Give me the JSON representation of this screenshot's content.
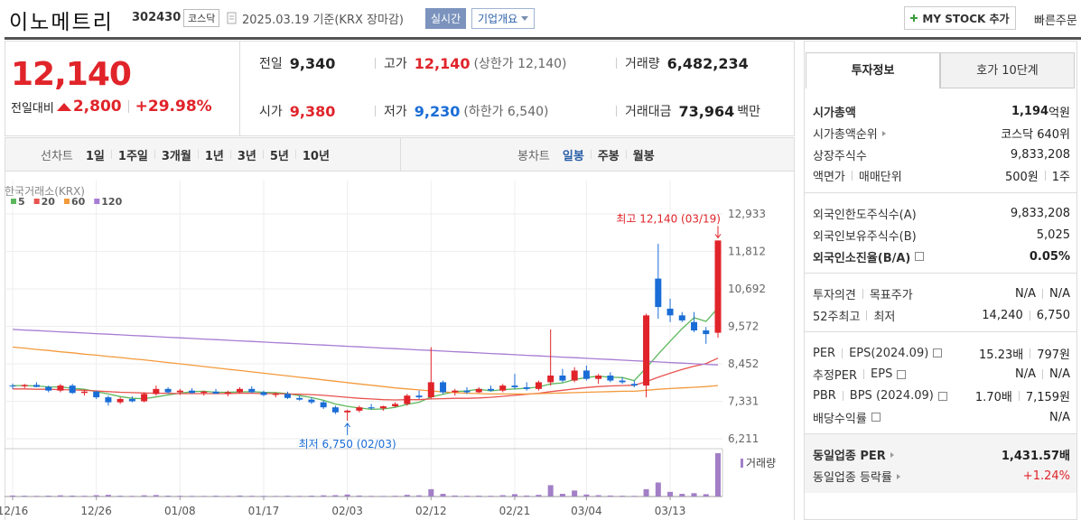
{
  "header": {
    "name": "이노메트리",
    "code": "302430",
    "market": "코스닥",
    "date": "2025.03.19",
    "basis": "기준(KRX 장마감)",
    "realtime_button": "실시간",
    "company_button": "기업개요",
    "mystock_button": "MY STOCK 추가",
    "quick_order": "빠른주문"
  },
  "quote": {
    "price": "12,140",
    "price_color": "#e0242a",
    "change_label": "전일대비",
    "change": "2,800",
    "change_rate": "+29.98%",
    "fields": [
      {
        "label": "전일",
        "value": "9,340",
        "color": "#222222"
      },
      {
        "label": "고가",
        "value": "12,140",
        "color": "#e0242a",
        "note": "(상한가 12,140)"
      },
      {
        "label": "거래량",
        "value": "6,482,234",
        "color": "#222222"
      },
      {
        "label": "시가",
        "value": "9,380",
        "color": "#e0242a"
      },
      {
        "label": "저가",
        "value": "9,230",
        "color": "#1a6dd6",
        "note": "(하한가 6,540)"
      },
      {
        "label": "거래대금",
        "value": "73,964",
        "color": "#222222",
        "unit": "백만"
      }
    ]
  },
  "tabs": {
    "line_chart": "선차트",
    "periods": [
      "1일",
      "1주일",
      "3개월",
      "1년",
      "3년",
      "5년",
      "10년"
    ],
    "candle_chart": "봉차트",
    "candle_periods": [
      "일봉",
      "주봉",
      "월봉"
    ],
    "active_candle": 0
  },
  "chart_data": {
    "type": "candlestick",
    "source": "한국거래소(KRX)",
    "categories": [
      "12/16",
      null,
      null,
      null,
      null,
      null,
      null,
      "12/26",
      null,
      null,
      null,
      null,
      null,
      null,
      "01/08",
      null,
      null,
      null,
      null,
      null,
      null,
      "01/17",
      null,
      null,
      null,
      null,
      null,
      null,
      "02/03",
      null,
      null,
      null,
      null,
      null,
      null,
      "02/12",
      null,
      null,
      null,
      null,
      null,
      null,
      "02/21",
      null,
      null,
      null,
      null,
      null,
      "03/04",
      null,
      null,
      null,
      null,
      null,
      null,
      "03/13",
      null,
      null,
      null,
      null
    ],
    "open": [
      7800,
      7780,
      7820,
      7760,
      7650,
      7800,
      7580,
      7620,
      7450,
      7300,
      7400,
      7330,
      7550,
      7700,
      7600,
      7650,
      7580,
      7620,
      7560,
      7600,
      7700,
      7600,
      7520,
      7550,
      7430,
      7380,
      7300,
      7150,
      7000,
      7050,
      7150,
      7120,
      7180,
      7250,
      7500,
      7450,
      7900,
      7600,
      7650,
      7600,
      7700,
      7650,
      7800,
      7750,
      7700,
      7900,
      8100,
      7950,
      8250,
      8000,
      8100,
      7950,
      7850,
      7800,
      11000,
      10100,
      9900,
      9700,
      9450,
      9380
    ],
    "high": [
      7860,
      7850,
      7900,
      7800,
      7850,
      7850,
      7680,
      7650,
      7500,
      7450,
      7480,
      7600,
      7800,
      7750,
      7700,
      7720,
      7650,
      7700,
      7650,
      7750,
      7780,
      7650,
      7600,
      7620,
      7500,
      7450,
      7350,
      7200,
      7080,
      7200,
      7250,
      7200,
      7300,
      7550,
      7650,
      8950,
      7950,
      7700,
      7750,
      7750,
      7800,
      7850,
      8150,
      7900,
      7950,
      9480,
      8300,
      8350,
      8400,
      8150,
      8200,
      8050,
      7950,
      9950,
      12040,
      10400,
      10000,
      10000,
      9550,
      12140
    ],
    "low": [
      7700,
      7720,
      7750,
      7600,
      7600,
      7550,
      7500,
      7400,
      7200,
      7250,
      7300,
      7300,
      7500,
      7550,
      7520,
      7550,
      7500,
      7550,
      7480,
      7560,
      7580,
      7480,
      7450,
      7400,
      7350,
      7250,
      7100,
      6950,
      6750,
      7000,
      7080,
      7050,
      7150,
      7200,
      7400,
      7400,
      7550,
      7500,
      7550,
      7580,
      7620,
      7600,
      7700,
      7650,
      7650,
      7800,
      7900,
      7900,
      7950,
      7850,
      7900,
      7850,
      7750,
      7450,
      9800,
      9700,
      9700,
      9400,
      9050,
      9230
    ],
    "close": [
      7780,
      7820,
      7760,
      7650,
      7800,
      7580,
      7620,
      7450,
      7300,
      7400,
      7330,
      7550,
      7700,
      7600,
      7650,
      7580,
      7620,
      7560,
      7600,
      7700,
      7600,
      7520,
      7550,
      7430,
      7380,
      7300,
      7150,
      7000,
      7050,
      7150,
      7120,
      7180,
      7250,
      7500,
      7450,
      7900,
      7600,
      7650,
      7600,
      7700,
      7650,
      7800,
      7750,
      7700,
      7900,
      8100,
      7950,
      8250,
      8000,
      8100,
      7950,
      7900,
      7800,
      9900,
      10150,
      9900,
      9750,
      9450,
      9340,
      12140
    ],
    "volume": [
      150000,
      120000,
      100000,
      130000,
      180000,
      140000,
      110000,
      200000,
      250000,
      120000,
      100000,
      180000,
      220000,
      130000,
      110000,
      100000,
      90000,
      120000,
      100000,
      150000,
      110000,
      100000,
      90000,
      120000,
      100000,
      130000,
      180000,
      200000,
      300000,
      150000,
      100000,
      90000,
      110000,
      250000,
      180000,
      1100000,
      400000,
      150000,
      120000,
      130000,
      110000,
      200000,
      350000,
      150000,
      250000,
      1700000,
      400000,
      900000,
      300000,
      200000,
      150000,
      120000,
      100000,
      1100000,
      2100000,
      700000,
      400000,
      500000,
      350000,
      6482234
    ],
    "volume_label": "거래량",
    "volume_color": "#a27fc7",
    "up_color": "#e0242a",
    "down_color": "#1a6dd6",
    "ma": [
      {
        "name": "5",
        "color": "#5cb85c",
        "values": [
          7800,
          7800,
          7790,
          7760,
          7760,
          7720,
          7690,
          7620,
          7550,
          7470,
          7420,
          7410,
          7460,
          7520,
          7570,
          7620,
          7630,
          7600,
          7600,
          7610,
          7620,
          7600,
          7590,
          7560,
          7500,
          7440,
          7360,
          7250,
          7180,
          7130,
          7090,
          7100,
          7150,
          7240,
          7300,
          7460,
          7540,
          7620,
          7640,
          7690,
          7640,
          7680,
          7700,
          7720,
          7760,
          7850,
          7880,
          7980,
          8040,
          8080,
          8050,
          8040,
          7950,
          8330,
          8740,
          9130,
          9500,
          9830,
          9720,
          10120
        ]
      },
      {
        "name": "20",
        "color": "#e8534f",
        "values": [
          7700,
          7700,
          7690,
          7690,
          7680,
          7670,
          7660,
          7640,
          7620,
          7600,
          7590,
          7580,
          7570,
          7570,
          7560,
          7560,
          7560,
          7560,
          7560,
          7570,
          7570,
          7560,
          7560,
          7550,
          7540,
          7530,
          7510,
          7480,
          7450,
          7420,
          7400,
          7380,
          7370,
          7380,
          7380,
          7400,
          7410,
          7420,
          7420,
          7430,
          7450,
          7480,
          7510,
          7540,
          7570,
          7620,
          7660,
          7700,
          7740,
          7770,
          7790,
          7800,
          7810,
          7920,
          8050,
          8170,
          8280,
          8380,
          8460,
          8620
        ]
      },
      {
        "name": "60",
        "color": "#f39a3c",
        "values": [
          8950,
          8920,
          8880,
          8850,
          8810,
          8780,
          8740,
          8710,
          8670,
          8640,
          8600,
          8570,
          8530,
          8490,
          8450,
          8410,
          8370,
          8330,
          8290,
          8250,
          8210,
          8170,
          8130,
          8090,
          8050,
          8010,
          7970,
          7930,
          7890,
          7850,
          7810,
          7770,
          7730,
          7700,
          7670,
          7640,
          7610,
          7590,
          7570,
          7560,
          7550,
          7550,
          7550,
          7550,
          7560,
          7570,
          7580,
          7590,
          7600,
          7610,
          7620,
          7630,
          7630,
          7660,
          7690,
          7710,
          7730,
          7750,
          7770,
          7800
        ]
      },
      {
        "name": "120",
        "color": "#a77bd3",
        "values": [
          9480,
          9462,
          9444,
          9426,
          9408,
          9390,
          9372,
          9354,
          9336,
          9318,
          9300,
          9282,
          9264,
          9246,
          9228,
          9210,
          9192,
          9174,
          9156,
          9138,
          9120,
          9102,
          9084,
          9066,
          9048,
          9030,
          9012,
          8994,
          8976,
          8958,
          8940,
          8922,
          8904,
          8886,
          8868,
          8850,
          8832,
          8814,
          8796,
          8778,
          8760,
          8742,
          8724,
          8706,
          8688,
          8670,
          8652,
          8634,
          8616,
          8598,
          8580,
          8562,
          8544,
          8526,
          8508,
          8490,
          8472,
          8454,
          8436,
          8418
        ]
      }
    ],
    "ylim": [
      6048,
      13608
    ],
    "yticks": [
      {
        "value": 6211,
        "label": "6,211"
      },
      {
        "value": 7331,
        "label": "7,331"
      },
      {
        "value": 8452,
        "label": "8,452"
      },
      {
        "value": 9572,
        "label": "9,572"
      },
      {
        "value": 10692,
        "label": "10,692"
      },
      {
        "value": 11812,
        "label": "11,812"
      },
      {
        "value": 12933,
        "label": "12,933"
      }
    ],
    "grid": true,
    "annotations": [
      {
        "text": "최고 12,140 (03/19)",
        "index": 59,
        "color": "#e0242a"
      },
      {
        "text": "최저 6,750 (02/03)",
        "index": 28,
        "color": "#1a6dd6"
      }
    ]
  },
  "invest_info": {
    "tabs": [
      "투자정보",
      "호가 10단계"
    ],
    "groups": [
      {
        "rows": [
          {
            "labels": [
              "시가총액"
            ],
            "values": [
              "1,194"
            ],
            "unit": "억원",
            "bold": true
          },
          {
            "labels": [
              "시가총액순위"
            ],
            "link": true,
            "values": [
              "코스닥 640위"
            ]
          },
          {
            "labels": [
              "상장주식수"
            ],
            "values": [
              "9,833,208"
            ]
          },
          {
            "labels": [
              "액면가",
              "매매단위"
            ],
            "values": [
              "500원",
              "1주"
            ]
          }
        ]
      },
      {
        "rows": [
          {
            "labels": [
              "외국인한도주식수(A)"
            ],
            "values": [
              "9,833,208"
            ]
          },
          {
            "labels": [
              "외국인보유주식수(B)"
            ],
            "values": [
              "5,025"
            ]
          },
          {
            "labels": [
              "외국인소진율(B/A)"
            ],
            "help": true,
            "values": [
              "0.05%"
            ],
            "bold": true
          }
        ]
      },
      {
        "rows": [
          {
            "labels": [
              "투자의견",
              "목표주가"
            ],
            "values": [
              "N/A",
              "N/A"
            ]
          },
          {
            "labels": [
              "52주최고",
              "최저"
            ],
            "values": [
              "14,240",
              "6,750"
            ]
          }
        ]
      },
      {
        "rows": [
          {
            "labels": [
              "PER",
              "EPS(2024.09)"
            ],
            "help": true,
            "values": [
              "15.23배",
              "797원"
            ]
          },
          {
            "labels": [
              "추정PER",
              "EPS"
            ],
            "help": true,
            "values": [
              "N/A",
              "N/A"
            ]
          },
          {
            "labels": [
              "PBR",
              "BPS (2024.09)"
            ],
            "help": true,
            "values": [
              "1.70배",
              "7,159원"
            ]
          },
          {
            "labels": [
              "배당수익률"
            ],
            "help": true,
            "values": [
              "N/A"
            ]
          }
        ]
      },
      {
        "shaded": true,
        "rows": [
          {
            "labels": [
              "동일업종 PER"
            ],
            "link": true,
            "values": [
              "1,431.57배"
            ],
            "bold": true
          },
          {
            "labels": [
              "동일업종 등락률"
            ],
            "link": true,
            "values": [
              "+1.24%"
            ],
            "color": "#e0242a"
          }
        ]
      }
    ]
  }
}
